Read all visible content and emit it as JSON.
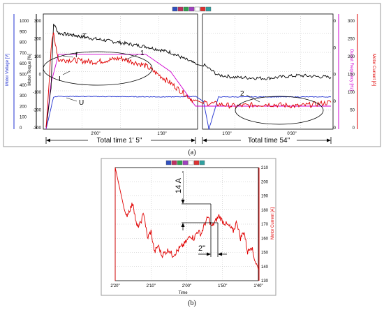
{
  "captions": {
    "a": "(a)",
    "b": "(b)"
  },
  "colors": {
    "torque": "#000000",
    "current": "#e00000",
    "voltage": "#2030d0",
    "frequency": "#d000d0",
    "panel_bg": "#d4d0c8",
    "grid": "#888888"
  },
  "icons": [
    "toolbar-a-icon",
    "toolbar-b-icon",
    "toolbar-c-icon",
    "toolbar-d-icon",
    "toolbar-e-icon",
    "toolbar-f-icon",
    "toolbar-g-icon"
  ],
  "chart_data": [
    {
      "id": "a",
      "type": "line",
      "left_axes": [
        {
          "label": "Motor Voltage [V]",
          "ticks": [
            "1000",
            "900",
            "800",
            "700",
            "600",
            "500",
            "400",
            "300",
            "200",
            "100",
            "0"
          ],
          "color": "#2030d0"
        },
        {
          "label": "Motor Torque [%]",
          "ticks": [
            "300",
            "200",
            "100",
            "0",
            "-100",
            "-200",
            "-300"
          ],
          "color": "#000000"
        }
      ],
      "right_axes": [
        {
          "label": "Output Frequency [Hz]",
          "ticks": [
            "100",
            "50",
            "0",
            "-50",
            "-100"
          ],
          "color": "#d000d0"
        },
        {
          "label": "Motor Current [A]",
          "ticks": [
            "300",
            "250",
            "200",
            "150",
            "100",
            "50",
            "0"
          ],
          "color": "#e00000"
        }
      ],
      "x_tick_labels_left": [
        "2'00\"",
        "1'30\""
      ],
      "x_tick_labels_right": [
        "1'00\"",
        "0'30\""
      ],
      "intervals": [
        {
          "label": "Total time 1' 5\""
        },
        {
          "label": "Total time 54\""
        }
      ],
      "series_labels": {
        "torque": "T",
        "frequency": "f",
        "current": "I",
        "voltage": "U"
      },
      "region_labels": [
        "1",
        "2"
      ],
      "series": [
        {
          "name": "T",
          "x": [
            0,
            0.02,
            0.03,
            0.05,
            0.1,
            0.2,
            0.3,
            0.4,
            0.5,
            0.6,
            0.65,
            0.66,
            0.7,
            0.8,
            0.9,
            1.0
          ],
          "y": [
            -290,
            -80,
            250,
            200,
            190,
            170,
            150,
            130,
            100,
            40,
            -20,
            -20,
            -30,
            -35,
            -20,
            -30
          ]
        },
        {
          "name": "f",
          "x": [
            0,
            0.02,
            0.05,
            0.4,
            0.5,
            0.6,
            0.7,
            1.0
          ],
          "y": [
            -100,
            -20,
            30,
            30,
            0,
            -60,
            -60,
            -60
          ]
        },
        {
          "name": "I",
          "x": [
            0,
            0.02,
            0.03,
            0.05,
            0.1,
            0.2,
            0.3,
            0.4,
            0.5,
            0.6,
            0.7,
            0.8,
            0.9,
            1.0
          ],
          "y": [
            0,
            210,
            250,
            180,
            180,
            175,
            185,
            165,
            120,
            70,
            60,
            65,
            60,
            70
          ]
        },
        {
          "name": "U",
          "x": [
            0,
            0.03,
            0.05,
            0.5,
            0.6,
            0.62,
            0.65,
            1.0
          ],
          "y": [
            0,
            280,
            285,
            280,
            285,
            0,
            280,
            280
          ]
        }
      ]
    },
    {
      "id": "b",
      "type": "line",
      "xlabel": "Time",
      "ylabel": "Motor Current [A]",
      "x_tick_labels": [
        "2'20\"",
        "2'10\"",
        "2'00\"",
        "1'50\"",
        "1'40\""
      ],
      "y_tick_labels": [
        "210",
        "200",
        "190",
        "180",
        "170",
        "160",
        "150",
        "140",
        "130"
      ],
      "ylim": [
        130,
        210
      ],
      "annotations": [
        "14 A",
        "2\""
      ],
      "series": [
        {
          "name": "current",
          "x": [
            140,
            137,
            136,
            135,
            134,
            133,
            132,
            131,
            130,
            129,
            128,
            127,
            126,
            125,
            124,
            123,
            122,
            121,
            120,
            119,
            118,
            117,
            116,
            115,
            114,
            113,
            112,
            111,
            110,
            109,
            108,
            107,
            106,
            105,
            104,
            103,
            102,
            101,
            100
          ],
          "y": [
            210,
            175,
            180,
            185,
            168,
            170,
            178,
            160,
            165,
            150,
            155,
            148,
            150,
            152,
            148,
            150,
            153,
            155,
            158,
            162,
            160,
            165,
            163,
            170,
            175,
            168,
            172,
            176,
            172,
            170,
            168,
            165,
            172,
            160,
            165,
            150,
            155,
            145,
            138
          ]
        }
      ]
    }
  ]
}
